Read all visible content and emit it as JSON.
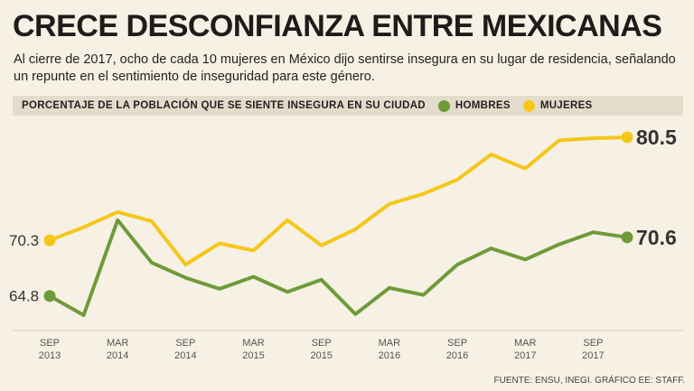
{
  "header": {
    "title": "CRECE DESCONFIANZA ENTRE MEXICANAS",
    "subtitle": "Al cierre de 2017, ocho de cada 10 mujeres en México dijo sentirse insegura en su lugar de residencia, señalando un repunte en el sentimiento de inseguridad para este género."
  },
  "legend": {
    "title": "PORCENTAJE DE LA POBLACIÓN QUE SE SIENTE INSEGURA EN SU CIUDAD",
    "hombres_label": "HOMBRES",
    "mujeres_label": "MUJERES"
  },
  "source": "FUENTE: ENSU, INEGI. GRÁFICO EE: STAFF.",
  "colors": {
    "hombres": "#6f9a3a",
    "mujeres": "#f4c719",
    "axis_text": "#555555"
  },
  "chart_data": {
    "type": "line",
    "title": "PORCENTAJE DE LA POBLACIÓN QUE SE SIENTE INSEGURA EN SU CIUDAD",
    "xlabel": "",
    "ylabel": "",
    "ylim": [
      60,
      84
    ],
    "grid": false,
    "legend_position": "top",
    "ticks": [
      {
        "index": 0,
        "month": "SEP",
        "year": "2013"
      },
      {
        "index": 2,
        "month": "MAR",
        "year": "2014"
      },
      {
        "index": 4,
        "month": "SEP",
        "year": "2014"
      },
      {
        "index": 6,
        "month": "MAR",
        "year": "2015"
      },
      {
        "index": 8,
        "month": "SEP",
        "year": "2015"
      },
      {
        "index": 10,
        "month": "MAR",
        "year": "2016"
      },
      {
        "index": 12,
        "month": "SEP",
        "year": "2016"
      },
      {
        "index": 14,
        "month": "MAR",
        "year": "2017"
      },
      {
        "index": 16,
        "month": "SEP",
        "year": "2017"
      }
    ],
    "series": [
      {
        "name": "HOMBRES",
        "values": [
          64.8,
          62.9,
          72.3,
          68.1,
          66.6,
          65.5,
          66.7,
          65.2,
          66.4,
          63.0,
          65.6,
          64.9,
          67.9,
          69.5,
          68.4,
          69.9,
          71.1,
          70.6
        ],
        "start_label": "64.8",
        "end_label": "70.6"
      },
      {
        "name": "MUJERES",
        "values": [
          70.3,
          71.6,
          73.1,
          72.2,
          67.9,
          70.0,
          69.3,
          72.3,
          69.8,
          71.4,
          73.9,
          74.9,
          76.3,
          78.8,
          77.4,
          80.2,
          80.4,
          80.5
        ],
        "start_label": "70.3",
        "end_label": "80.5"
      }
    ]
  }
}
